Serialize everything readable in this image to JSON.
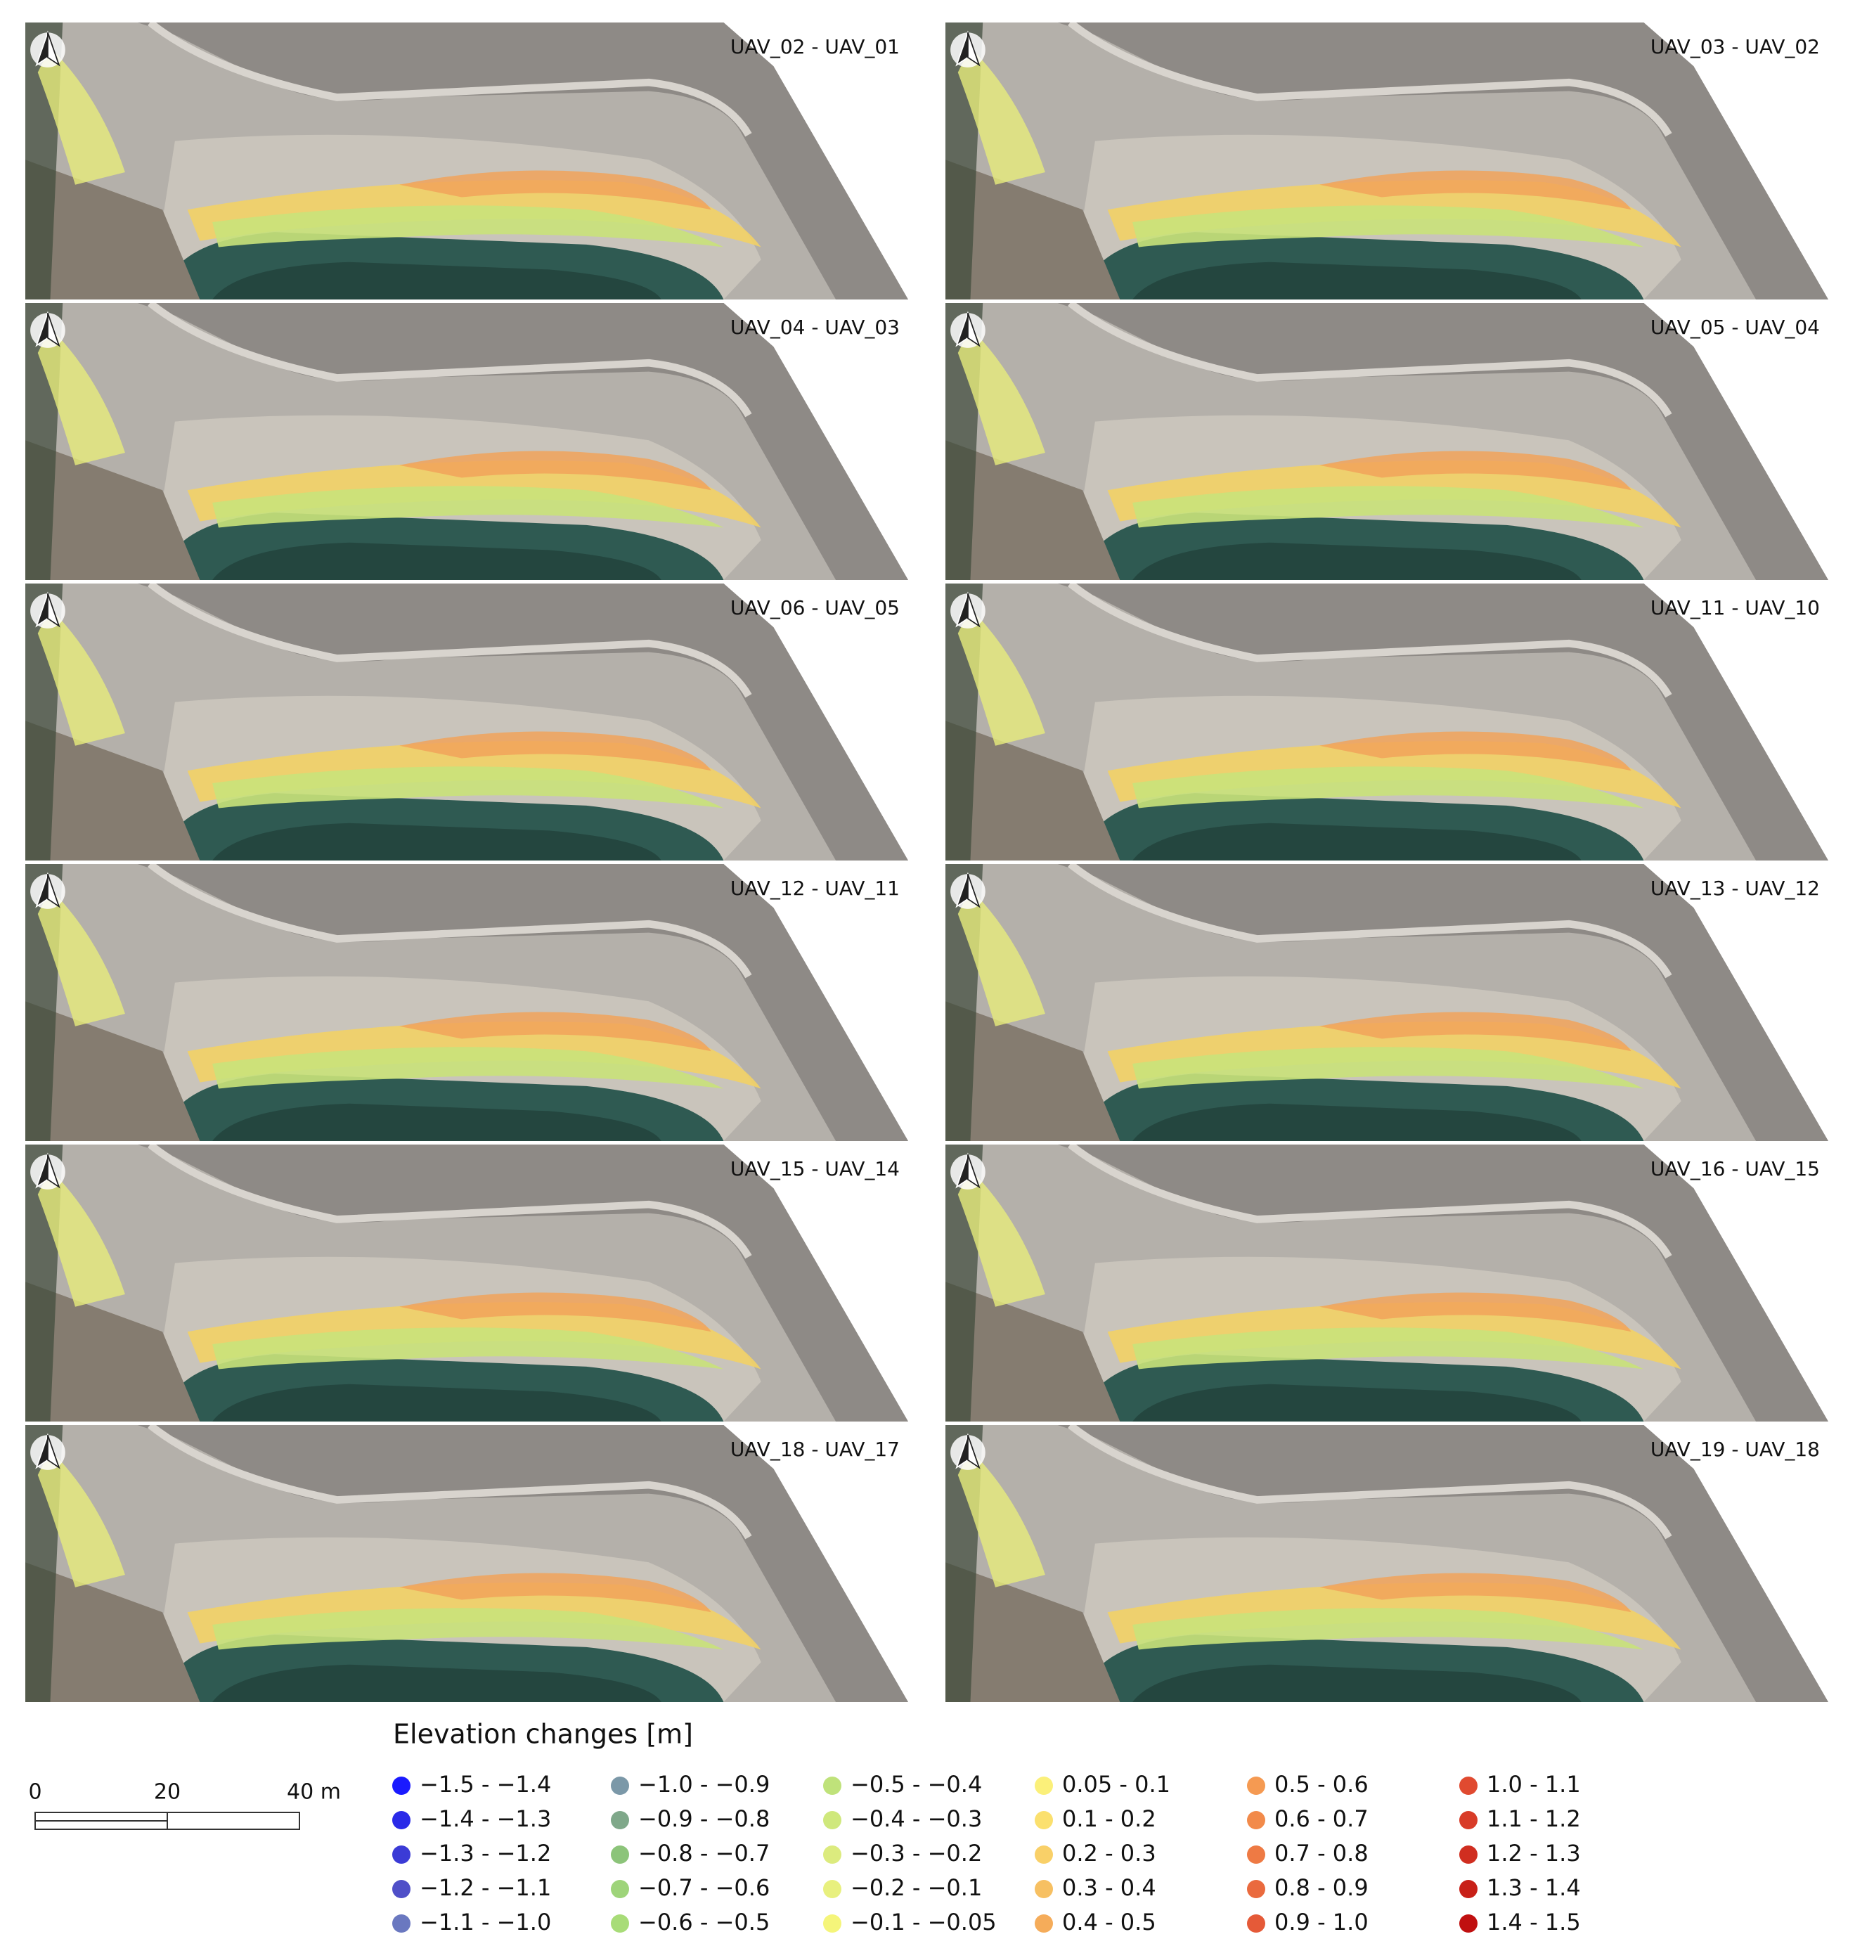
{
  "panels": [
    "UAV_02 - UAV_01",
    "UAV_03 - UAV_02",
    "UAV_04 - UAV_03",
    "UAV_05 - UAV_04",
    "UAV_06 - UAV_05",
    "UAV_11 - UAV_10",
    "UAV_12 - UAV_11",
    "UAV_13 - UAV_12",
    "UAV_15 - UAV_14",
    "UAV_16 - UAV_15",
    "UAV_18 - UAV_17",
    "UAV_19 - UAV_18"
  ],
  "legend": {
    "title": "Elevation changes [m]",
    "items": [
      {
        "label": "−1.5 - −1.4",
        "color": "#1a1aff"
      },
      {
        "label": "−1.4 - −1.3",
        "color": "#2a2ae8"
      },
      {
        "label": "−1.3 - −1.2",
        "color": "#3b3bd6"
      },
      {
        "label": "−1.2 - −1.1",
        "color": "#4f4fc8"
      },
      {
        "label": "−1.1 - −1.0",
        "color": "#6a78c0"
      },
      {
        "label": "−1.0 - −0.9",
        "color": "#7b98a8"
      },
      {
        "label": "−0.9 - −0.8",
        "color": "#7fa88a"
      },
      {
        "label": "−0.8 - −0.7",
        "color": "#8cc47a"
      },
      {
        "label": "−0.7 - −0.6",
        "color": "#9ed47a"
      },
      {
        "label": "−0.6 - −0.5",
        "color": "#a8dc78"
      },
      {
        "label": "−0.5 - −0.4",
        "color": "#bfe27a"
      },
      {
        "label": "−0.4 - −0.3",
        "color": "#cfe87c"
      },
      {
        "label": "−0.3 - −0.2",
        "color": "#dceb7e"
      },
      {
        "label": "−0.2 - −0.1",
        "color": "#e8f07e"
      },
      {
        "label": "−0.1 - −0.05",
        "color": "#f5f57a"
      },
      {
        "label": "0.05 - 0.1",
        "color": "#fbf07a"
      },
      {
        "label": "0.1 - 0.2",
        "color": "#fbe06e"
      },
      {
        "label": "0.2 - 0.3",
        "color": "#f9d068"
      },
      {
        "label": "0.3 - 0.4",
        "color": "#f7c062"
      },
      {
        "label": "0.4 - 0.5",
        "color": "#f5ac5a"
      },
      {
        "label": "0.5 - 0.6",
        "color": "#f59a52"
      },
      {
        "label": "0.6 - 0.7",
        "color": "#f28a4a"
      },
      {
        "label": "0.7 - 0.8",
        "color": "#ee7a44"
      },
      {
        "label": "0.8 - 0.9",
        "color": "#ea6a3e"
      },
      {
        "label": "0.9 - 1.0",
        "color": "#e55a38"
      },
      {
        "label": "1.0 - 1.1",
        "color": "#e04a30"
      },
      {
        "label": "1.1 - 1.2",
        "color": "#d83c28"
      },
      {
        "label": "1.2 - 1.3",
        "color": "#d02e20"
      },
      {
        "label": "1.3 - 1.4",
        "color": "#c82018"
      },
      {
        "label": "1.4 - 1.5",
        "color": "#c01010"
      }
    ]
  },
  "scale_bar": {
    "labels": [
      "0",
      "20",
      "40 m"
    ]
  }
}
